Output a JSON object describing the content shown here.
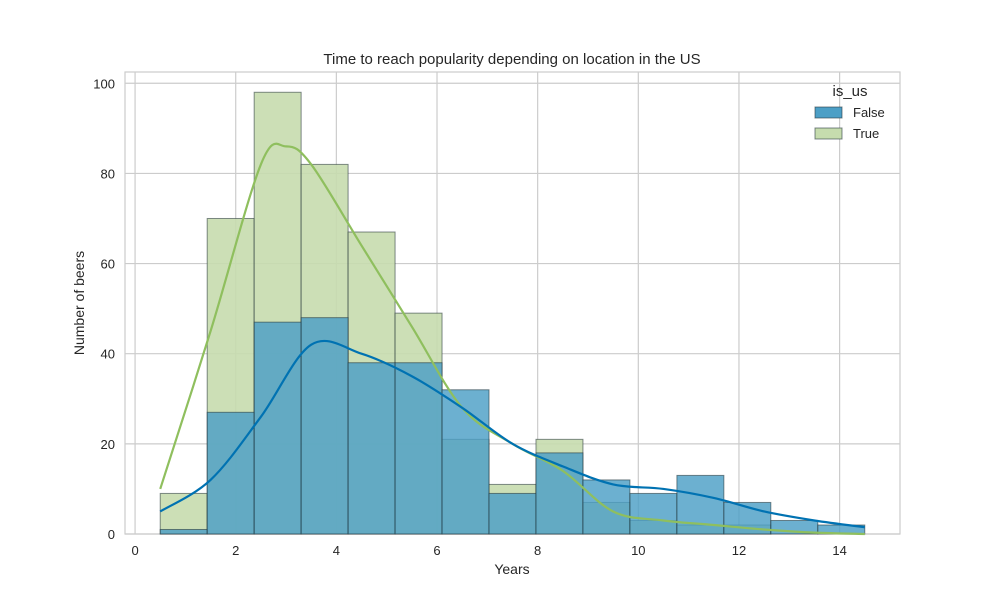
{
  "chart_data": {
    "type": "histogram",
    "title": "Time to reach popularity depending on location in the US",
    "xlabel": "Years",
    "ylabel": "Number of beers",
    "xlim": [
      -0.2,
      15.2
    ],
    "ylim": [
      0,
      102.5
    ],
    "xticks": [
      0,
      2,
      4,
      6,
      8,
      10,
      12,
      14
    ],
    "yticks": [
      0,
      20,
      40,
      60,
      80,
      100
    ],
    "grid": true,
    "legend": {
      "title": "is_us",
      "placement": "top-right"
    },
    "bin_edges": [
      0.5,
      1.4333,
      2.3667,
      3.3,
      4.2333,
      5.1667,
      6.1,
      7.0333,
      7.9667,
      8.9,
      9.8333,
      10.7667,
      11.7,
      12.6333,
      13.5667,
      14.5
    ],
    "series": [
      {
        "name": "False",
        "color": "#0072B2",
        "fill": "#4c9fc6",
        "counts": [
          1,
          27,
          47,
          48,
          38,
          38,
          32,
          9,
          18,
          12,
          9,
          13,
          7,
          3,
          2
        ],
        "kde": [
          [
            0.5,
            5
          ],
          [
            1.5,
            12
          ],
          [
            2.5,
            26
          ],
          [
            3.5,
            42
          ],
          [
            4.5,
            40
          ],
          [
            5.5,
            35
          ],
          [
            6.5,
            28
          ],
          [
            7.5,
            20
          ],
          [
            8.5,
            15
          ],
          [
            9.5,
            11
          ],
          [
            10.5,
            10
          ],
          [
            11.5,
            8
          ],
          [
            12.5,
            5
          ],
          [
            13.5,
            3
          ],
          [
            14.5,
            1.5
          ]
        ]
      },
      {
        "name": "True",
        "color": "#8fbf5e",
        "fill": "#c6dcae",
        "counts": [
          9,
          70,
          98,
          82,
          67,
          49,
          21,
          11,
          21,
          7,
          3,
          2,
          2,
          0,
          0
        ],
        "kde": [
          [
            0.5,
            10
          ],
          [
            1.5,
            45
          ],
          [
            2.5,
            82
          ],
          [
            3.0,
            86
          ],
          [
            3.5,
            82
          ],
          [
            4.5,
            64
          ],
          [
            5.5,
            46
          ],
          [
            6.5,
            28
          ],
          [
            7.5,
            20
          ],
          [
            8.5,
            14
          ],
          [
            9.5,
            5
          ],
          [
            10.5,
            3
          ],
          [
            11.5,
            2
          ],
          [
            12.5,
            1
          ],
          [
            13.5,
            0.3
          ],
          [
            14.5,
            0
          ]
        ]
      }
    ]
  }
}
